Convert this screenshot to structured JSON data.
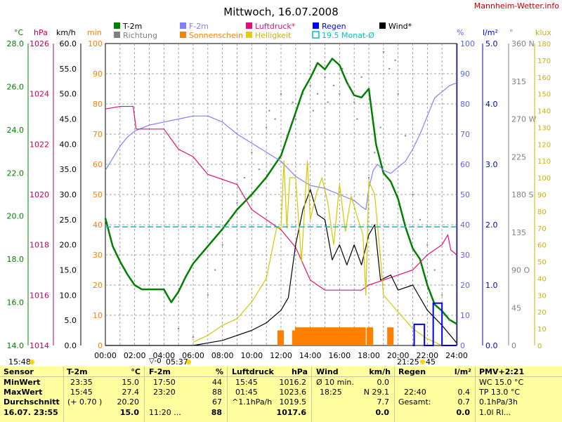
{
  "page": {
    "title": "Mittwoch, 16.07.2008",
    "site": "Mannheim-Wetter.info"
  },
  "legend": [
    {
      "label": "T-2m",
      "color": "#008000"
    },
    {
      "label": "Richtung",
      "color": "#808080"
    },
    {
      "label": "F-2m",
      "color": "#8080ff"
    },
    {
      "label": "Sonnenschein",
      "color": "#ff8000"
    },
    {
      "label": "Luftdruck*",
      "color": "#e0107a"
    },
    {
      "label": "Helligkeit",
      "color": "#d4c800"
    },
    {
      "label": "Regen",
      "color": "#0000ff"
    },
    {
      "label": "19.5 Monat-Ø",
      "color": "#00c0c0"
    },
    {
      "label": "Wind*",
      "color": "#000000"
    }
  ],
  "axes": {
    "temp": {
      "unit": "°C",
      "color": "#008000",
      "ticks": [
        "28.0",
        "26.0",
        "24.0",
        "22.0",
        "20.0",
        "18.0",
        "16.0",
        "14.0"
      ]
    },
    "pressure": {
      "unit": "hPa",
      "color": "#c00060",
      "ticks": [
        "1026",
        "1024",
        "1022",
        "1020",
        "1018",
        "1016",
        "1014"
      ]
    },
    "wind": {
      "unit": "km/h",
      "color": "#000000",
      "ticks": [
        "60.0",
        "55.0",
        "50.0",
        "45.0",
        "40.0",
        "35.0",
        "30.0",
        "25.0",
        "20.0",
        "15.0",
        "10.0",
        "5.0",
        "0.0"
      ]
    },
    "sun": {
      "unit": "min",
      "color": "#ff8000",
      "ticks": [
        "100",
        "90",
        "80",
        "70",
        "60",
        "50",
        "40",
        "30",
        "20",
        "10",
        "0"
      ]
    },
    "humidity": {
      "unit": "%",
      "color": "#6060ff",
      "ticks": [
        "100",
        "90",
        "80",
        "70",
        "60",
        "50",
        "40",
        "30",
        "20",
        "10",
        "0"
      ]
    },
    "rain": {
      "unit": "l/m²",
      "color": "#0000c0",
      "ticks": [
        "5.0",
        "4.0",
        "3.0",
        "2.0",
        "1.0",
        "0.0"
      ]
    },
    "direction": {
      "unit": "°",
      "color": "#808080",
      "ticks": [
        "360 N",
        "315",
        "270 W",
        "225",
        "180 S",
        "135",
        "90 O",
        "45",
        "0"
      ]
    },
    "lux": {
      "unit": "klux",
      "color": "#c8b400",
      "ticks": [
        "180",
        "170",
        "160",
        "150",
        "140",
        "130",
        "120",
        "110",
        "100",
        "90",
        "80",
        "70",
        "60",
        "50",
        "40",
        "30",
        "20",
        "10",
        "0"
      ]
    },
    "time": {
      "ticks": [
        "00:00",
        "02:00",
        "04:00",
        "06:00",
        "08:00",
        "10:00",
        "12:00",
        "14:00",
        "16:00",
        "18:00",
        "20:00",
        "22:00",
        "24:00"
      ]
    }
  },
  "bottom": {
    "sunrise": "05:37",
    "sunrise_prefix": "▽-0",
    "left_time": "15:48",
    "moon_time": "21:25",
    "moon_suffix": "45"
  },
  "stats": {
    "row_labels": [
      "Sensor",
      "MinWert",
      "MaxWert",
      "Durchschnitt",
      "16.07. 23:55"
    ],
    "t2m": {
      "head": "T-2m",
      "unit": "°C",
      "rows": [
        [
          "23:35",
          "15.0"
        ],
        [
          "15:45",
          "27.4"
        ],
        [
          "(+ 0.70 )",
          "20.20"
        ],
        [
          "",
          "15.0"
        ]
      ]
    },
    "f2m": {
      "head": "F-2m",
      "unit": "%",
      "rows": [
        [
          "17:50",
          "44"
        ],
        [
          "23:20",
          "88"
        ],
        [
          "",
          "67"
        ],
        [
          "11:20 ...",
          "88"
        ]
      ]
    },
    "druck": {
      "head": "Luftdruck",
      "unit": "hPa",
      "rows": [
        [
          "15:45",
          "1016.2"
        ],
        [
          "01:45",
          "1023.6"
        ],
        [
          "^1.1hPa/h",
          "1019.5"
        ],
        [
          "",
          "1017.6"
        ]
      ]
    },
    "wind": {
      "head": "Wind",
      "unit": "km/h",
      "rows": [
        [
          "Ø 10 min.",
          "0.0"
        ],
        [
          "18:25",
          "N 29.1"
        ],
        [
          "",
          "7.7"
        ],
        [
          "",
          "0.0"
        ]
      ]
    },
    "regen": {
      "head": "Regen",
      "unit": "l/m²",
      "rows": [
        [
          "22:40",
          "0.4"
        ],
        [
          "Gesamt:",
          "0.7"
        ],
        [
          "",
          "0.0"
        ]
      ]
    },
    "pmv": {
      "head": "PMV+2:21",
      "rows": [
        "WC 15.0 °C",
        "TP 13.0 °C",
        "0.1hPa/3h",
        "1.0l Rl..."
      ]
    }
  },
  "chart_data": {
    "type": "line",
    "title": "Mittwoch, 16.07.2008",
    "x_unit": "hours",
    "xlim": [
      0,
      24
    ],
    "series": [
      {
        "name": "T-2m",
        "axis": "temp",
        "ylim": [
          14,
          28
        ],
        "color": "#008000",
        "x": [
          0,
          0.5,
          1,
          1.5,
          2,
          2.5,
          3,
          4,
          4.5,
          5,
          5.5,
          6,
          7,
          8,
          9,
          10,
          11,
          12,
          12.5,
          13,
          13.5,
          14,
          14.5,
          15,
          15.5,
          16,
          16.5,
          17,
          17.5,
          18,
          18.5,
          19,
          19.5,
          20,
          20.5,
          21,
          21.5,
          22,
          22.5,
          23,
          23.5,
          24
        ],
        "y": [
          19.9,
          18.6,
          17.9,
          17.3,
          16.8,
          16.6,
          16.6,
          16.6,
          16.0,
          16.5,
          17.2,
          17.8,
          18.6,
          19.4,
          20.3,
          21.0,
          21.8,
          22.8,
          23.8,
          24.8,
          25.8,
          26.4,
          27.1,
          26.8,
          27.3,
          27.0,
          26.2,
          25.6,
          25.5,
          25.9,
          23.3,
          22.0,
          21.6,
          20.8,
          19.5,
          18.5,
          18.0,
          16.8,
          15.9,
          15.6,
          15.2,
          15.0
        ]
      },
      {
        "name": "F-2m",
        "axis": "humidity",
        "ylim": [
          0,
          100
        ],
        "color": "#8080ff",
        "x": [
          0,
          0.5,
          1,
          1.5,
          2,
          2.5,
          3,
          4,
          5,
          6,
          7,
          8,
          9,
          10,
          11,
          12,
          13,
          14,
          15,
          16,
          17,
          17.5,
          17.8,
          18,
          18.3,
          18.6,
          19,
          19.5,
          20,
          20.5,
          21,
          21.5,
          22,
          22.5,
          23,
          23.5,
          24
        ],
        "y": [
          58,
          62,
          66,
          69,
          71,
          72,
          73,
          74,
          75,
          76,
          76,
          74,
          70,
          67,
          64,
          61,
          56,
          53,
          52,
          50,
          48,
          46,
          45,
          52,
          58,
          60,
          58,
          57,
          59,
          61,
          65,
          70,
          76,
          82,
          84,
          86,
          87
        ]
      },
      {
        "name": "Luftdruck*",
        "axis": "pressure",
        "ylim": [
          1014,
          1026
        ],
        "color": "#e0107a",
        "x": [
          0,
          1,
          1.9,
          2.1,
          4,
          5,
          6,
          7,
          8,
          9,
          10,
          11,
          12,
          13,
          14,
          15,
          16,
          17,
          17.5,
          18,
          19,
          20,
          21,
          22,
          23,
          23.4,
          23.6,
          24
        ],
        "y": [
          1023.4,
          1023.5,
          1023.5,
          1022.6,
          1022.6,
          1021.8,
          1021.5,
          1020.8,
          1020.6,
          1020.4,
          1019.4,
          1019.0,
          1018.6,
          1017.9,
          1016.6,
          1016.2,
          1016.2,
          1016.2,
          1016.2,
          1016.4,
          1016.6,
          1016.8,
          1017.0,
          1017.6,
          1018.0,
          1018.4,
          1017.8,
          1017.6
        ]
      },
      {
        "name": "Wind*",
        "axis": "wind",
        "ylim": [
          0,
          60
        ],
        "color": "#000000",
        "x": [
          0,
          6,
          7,
          8,
          9,
          10,
          11,
          12,
          12.5,
          13,
          13.5,
          14,
          14.5,
          15,
          15.5,
          16,
          16.5,
          17,
          17.5,
          18,
          18.4,
          18.8,
          19.5,
          20,
          21,
          22,
          23,
          24
        ],
        "y": [
          0,
          0,
          0.5,
          1.0,
          2.0,
          3.0,
          4.5,
          7.0,
          9.5,
          20.0,
          27.0,
          31.0,
          26.0,
          25.0,
          17.0,
          20.0,
          16.0,
          20.0,
          16.0,
          22.0,
          24.0,
          13.0,
          14.0,
          11.0,
          12.0,
          7.0,
          4.0,
          0.5
        ]
      },
      {
        "name": "Helligkeit",
        "axis": "lux",
        "ylim": [
          0,
          180
        ],
        "color": "#d4c800",
        "x": [
          6,
          7,
          8,
          9,
          10,
          11,
          11.7,
          12,
          12.2,
          12.4,
          12.6,
          13,
          13.4,
          13.8,
          14,
          14.4,
          14.8,
          15.2,
          15.6,
          16,
          16.4,
          16.8,
          17.2,
          17.6,
          17.8,
          18,
          18.4,
          18.8,
          19,
          19.5,
          20,
          21,
          22,
          23
        ],
        "y": [
          2,
          6,
          12,
          16,
          26,
          40,
          70,
          70,
          110,
          70,
          100,
          100,
          50,
          110,
          75,
          90,
          100,
          85,
          60,
          96,
          68,
          89,
          77,
          66,
          30,
          98,
          90,
          52,
          30,
          25,
          20,
          10,
          4,
          0
        ]
      },
      {
        "name": "Sonnenschein",
        "axis": "sun",
        "ylim": [
          0,
          100
        ],
        "type": "bar",
        "color": "#ff8000",
        "x": [
          11.9,
          12.1,
          12.9,
          13.1,
          13.3,
          13.5,
          13.7,
          13.9,
          14.1,
          14.3,
          14.5,
          14.7,
          14.9,
          15.1,
          15.3,
          15.5,
          15.7,
          15.9,
          16.1,
          16.3,
          16.5,
          16.7,
          16.9,
          17.1,
          17.3,
          17.5,
          17.7,
          18.0,
          18.2,
          19.4,
          19.6
        ],
        "y": [
          5,
          5,
          5,
          6,
          6,
          6,
          6,
          6,
          6,
          6,
          6,
          6,
          6,
          6,
          6,
          6,
          6,
          6,
          6,
          6,
          6,
          6,
          6,
          6,
          6,
          6,
          6,
          6,
          6,
          6,
          6
        ]
      },
      {
        "name": "Regen",
        "axis": "rain",
        "ylim": [
          0,
          5
        ],
        "type": "step",
        "color": "#0000ff",
        "x": [
          21.0,
          21.1,
          21.1,
          21.8,
          21.8,
          22.4,
          22.4,
          23.0,
          23.0,
          24
        ],
        "y": [
          0,
          0,
          0.35,
          0.35,
          0,
          0,
          0.7,
          0.7,
          0,
          0
        ]
      },
      {
        "name": "19.5 Monat-Ø",
        "axis": "temp",
        "type": "hline",
        "y": [
          19.5
        ],
        "color": "#00c0c0"
      },
      {
        "name": "Richtung",
        "axis": "direction",
        "ylim": [
          0,
          360
        ],
        "type": "scatter",
        "color": "#808080",
        "x": [
          5,
          6,
          7,
          7.5,
          8,
          8.5,
          9,
          9.5,
          10,
          10.5,
          11,
          11.2,
          11.6,
          12,
          12.4,
          12.8,
          13,
          13.5,
          14,
          14.2,
          14.5,
          15,
          15.2,
          15.6,
          16,
          16.2,
          16.6,
          17,
          17.2,
          17.5,
          18,
          18.4,
          18.8,
          19,
          19.4,
          19.8,
          20,
          20.5,
          21,
          21.5,
          22,
          22.5,
          23,
          23.5
        ],
        "y": [
          20,
          10,
          60,
          90,
          120,
          150,
          170,
          200,
          230,
          210,
          260,
          280,
          270,
          300,
          250,
          290,
          270,
          300,
          310,
          280,
          300,
          320,
          290,
          310,
          300,
          330,
          310,
          290,
          270,
          320,
          200,
          230,
          260,
          350,
          330,
          340,
          300,
          250,
          180,
          150,
          120,
          90,
          60,
          30
        ]
      }
    ]
  }
}
